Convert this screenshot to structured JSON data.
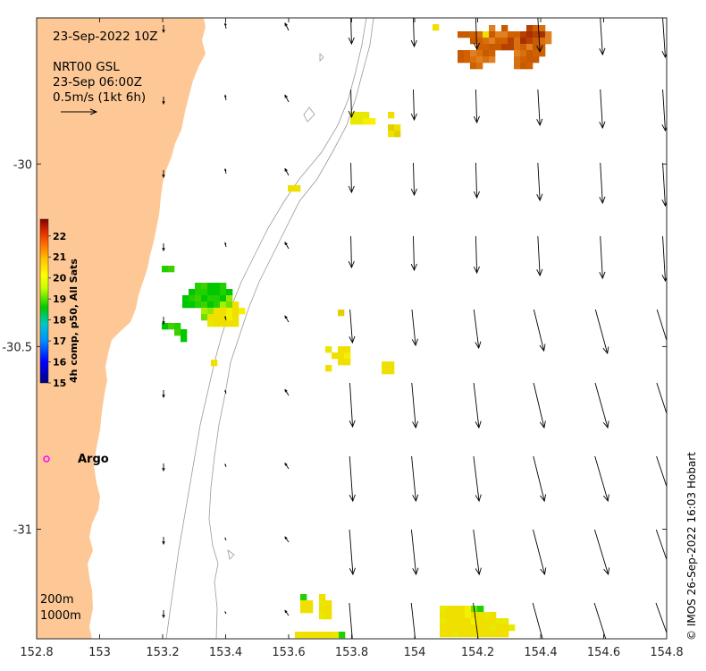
{
  "header": {
    "timestamp": "23-Sep-2022 10Z",
    "current_source": "NRT00 GSL",
    "current_time": "23-Sep 06:00Z",
    "scale_label": "0.5m/s (1kt 6h)"
  },
  "colorbar": {
    "title": "4h comp, p50, All Sats",
    "ticks": [
      "15",
      "16",
      "17",
      "18",
      "19",
      "20",
      "21",
      "22"
    ],
    "min": 15,
    "max": 22.8
  },
  "axes": {
    "x_ticks": [
      "152.8",
      "153",
      "153.2",
      "153.4",
      "153.6",
      "153.8",
      "154",
      "154.2",
      "154.4",
      "154.6",
      "154.8"
    ],
    "y_ticks": [
      "-30",
      "-30.5",
      "-31"
    ],
    "xlim": [
      152.8,
      154.8
    ],
    "ylim": [
      -31.3,
      -29.6
    ]
  },
  "labels": {
    "argo": "Argo",
    "depth_200": "200m",
    "depth_1000": "1000m",
    "credit": "© IMOS 26-Sep-2022 16:03 Hobart"
  },
  "colors": {
    "land": "#fdc896",
    "isobath": "#9a9a9a",
    "argo": "#ff00ff"
  }
}
